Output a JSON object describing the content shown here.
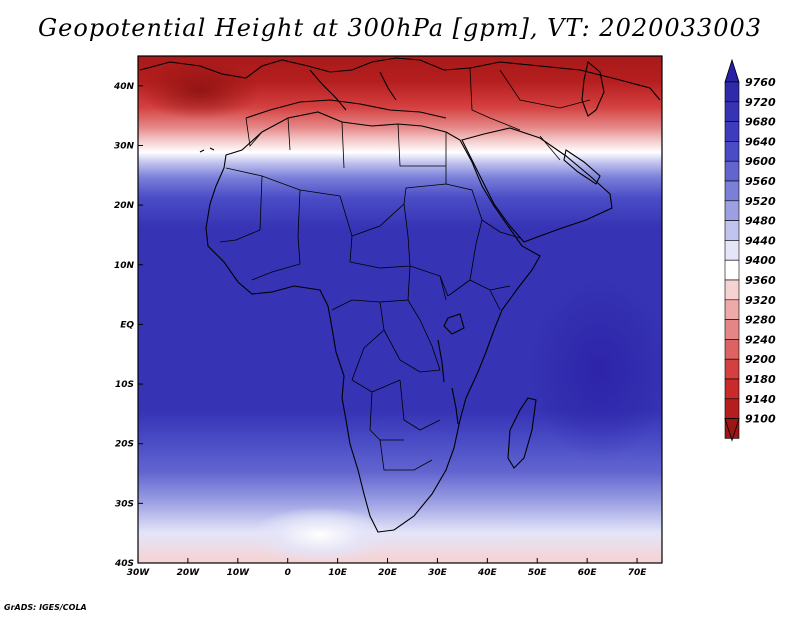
{
  "title": "Geopotential Height at 300hPa [gpm], VT: 2020033003",
  "credit": "GrADS: IGES/COLA",
  "map": {
    "lon_range": [
      -30,
      75
    ],
    "lat_range": [
      -40,
      45
    ],
    "x_ticks": [
      {
        "lon": -30,
        "label": "30W"
      },
      {
        "lon": -20,
        "label": "20W"
      },
      {
        "lon": -10,
        "label": "10W"
      },
      {
        "lon": 0,
        "label": "0"
      },
      {
        "lon": 10,
        "label": "10E"
      },
      {
        "lon": 20,
        "label": "20E"
      },
      {
        "lon": 30,
        "label": "30E"
      },
      {
        "lon": 40,
        "label": "40E"
      },
      {
        "lon": 50,
        "label": "50E"
      },
      {
        "lon": 60,
        "label": "60E"
      },
      {
        "lon": 70,
        "label": "70E"
      }
    ],
    "y_ticks": [
      {
        "lat": 40,
        "label": "40N"
      },
      {
        "lat": 30,
        "label": "30N"
      },
      {
        "lat": 20,
        "label": "20N"
      },
      {
        "lat": 10,
        "label": "10N"
      },
      {
        "lat": 0,
        "label": "EQ"
      },
      {
        "lat": -10,
        "label": "10S"
      },
      {
        "lat": -20,
        "label": "20S"
      },
      {
        "lat": -30,
        "label": "30S"
      },
      {
        "lat": -40,
        "label": "40S"
      }
    ]
  },
  "colorbar": {
    "levels": [
      {
        "value": "9760",
        "color": "#2a1fa6"
      },
      {
        "value": "9720",
        "color": "#2e2aaa"
      },
      {
        "value": "9680",
        "color": "#3633b4"
      },
      {
        "value": "9640",
        "color": "#3e3cbe"
      },
      {
        "value": "9600",
        "color": "#4a4cc6"
      },
      {
        "value": "9560",
        "color": "#6265cf"
      },
      {
        "value": "9520",
        "color": "#7a7fd8"
      },
      {
        "value": "9480",
        "color": "#9ca0e3"
      },
      {
        "value": "9440",
        "color": "#c2c4ef"
      },
      {
        "value": "9400",
        "color": "#e4e5f8"
      },
      {
        "value": "9360",
        "color": "#ffffff"
      },
      {
        "value": "9320",
        "color": "#f6d2d2"
      },
      {
        "value": "9280",
        "color": "#eea9a9"
      },
      {
        "value": "9240",
        "color": "#e58686"
      },
      {
        "value": "9200",
        "color": "#dd6262"
      },
      {
        "value": "9180",
        "color": "#d43f3f"
      },
      {
        "value": "9140",
        "color": "#c92b2b"
      },
      {
        "value": "9100",
        "color": "#b51e1e"
      }
    ],
    "bottom_color": "#9c1616"
  }
}
